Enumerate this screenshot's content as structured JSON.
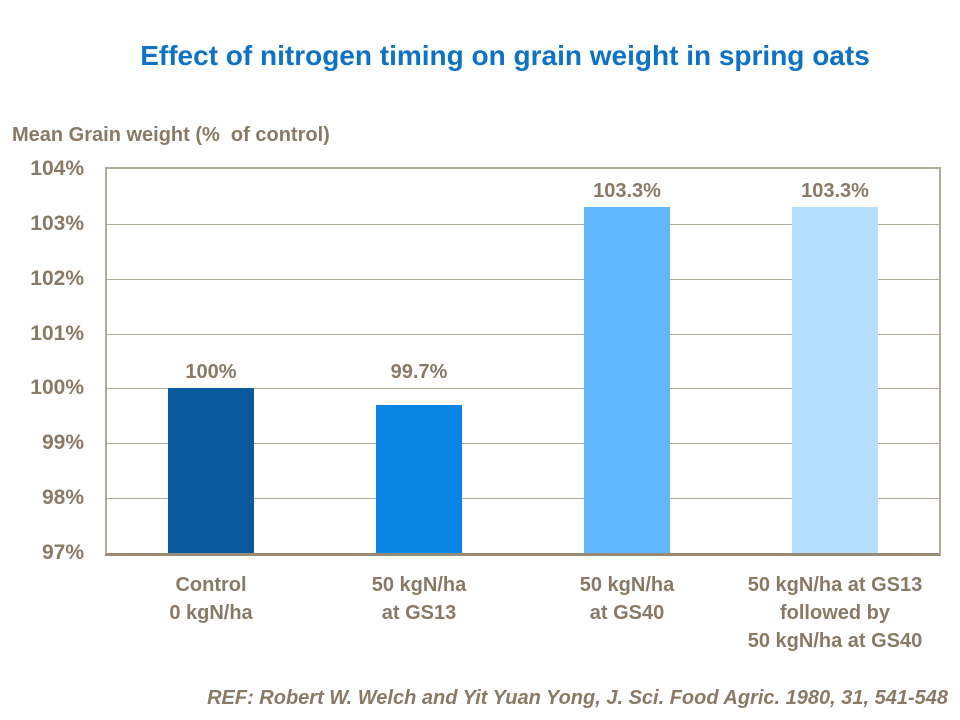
{
  "slide": {
    "title": "Effect of nitrogen timing on grain weight in spring oats",
    "reference": "REF: Robert W. Welch and Yit Yuan Yong, J. Sci. Food Agric. 1980, 31, 541-548"
  },
  "chart_data": {
    "type": "bar",
    "title": "Effect of nitrogen timing on grain weight in spring oats",
    "y_axis_title": "Mean Grain weight (%  of control)",
    "categories": [
      "Control\n0 kgN/ha",
      "50 kgN/ha\nat GS13",
      "50 kgN/ha\nat GS40",
      "50 kgN/ha at GS13\nfollowed by\n50 kgN/ha at GS40"
    ],
    "values": [
      100,
      99.7,
      103.3,
      103.3
    ],
    "value_labels": [
      "100%",
      "99.7%",
      "103.3%",
      "103.3%"
    ],
    "bar_colors": [
      "#0b5a9e",
      "#0986e4",
      "#63b8fb",
      "#b7defd"
    ],
    "y_ticks": [
      "104%",
      "103%",
      "102%",
      "101%",
      "100%",
      "99%",
      "98%",
      "97%"
    ],
    "ylim": [
      97,
      104
    ],
    "grid": true,
    "legend": "none",
    "colors": {
      "title_text": "#0e72c6",
      "axis_text": "#8a7a65",
      "gridline": "#b3a99a",
      "axis_line": "#978a76",
      "background": "#ffffff"
    }
  }
}
